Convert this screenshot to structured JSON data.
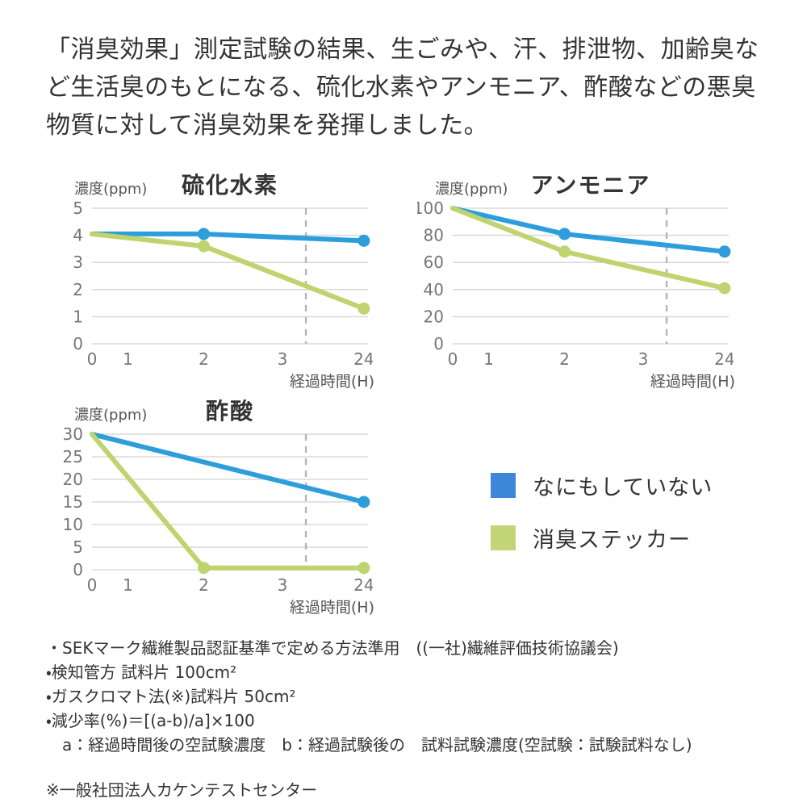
{
  "header": {
    "text": "「消臭効果」測定試験の結果、生ごみや、汗、排泄物、加齢臭など生活臭のもとになる、硫化水素やアンモニア、酢酸などの悪臭物質に対して消臭効果を発揮しました。"
  },
  "legend": {
    "items": [
      {
        "label": "なにもしていない",
        "color": "#3e86d8"
      },
      {
        "label": "消臭ステッカー",
        "color": "#c4d577"
      }
    ]
  },
  "chart_data": [
    {
      "type": "line",
      "title": "硫化水素",
      "ylabel": "濃度(ppm)",
      "xlabel": "経過時間(H)",
      "ylim": [
        0,
        5
      ],
      "yticks": [
        0,
        1,
        2,
        3,
        4,
        5
      ],
      "x_tick_labels": [
        "0",
        "1",
        "2",
        "3",
        "24"
      ],
      "x_tick_positions": [
        0,
        0.13,
        0.405,
        0.69,
        0.985
      ],
      "dashed_line_x": 0.775,
      "grid": true,
      "legend_position": "shared-right",
      "series": [
        {
          "name": "なにもしていない",
          "color": "#2d9edc",
          "points": [
            {
              "x": "0",
              "y": 4.05,
              "dot": false
            },
            {
              "x": "2",
              "y": 4.05,
              "dot": true
            },
            {
              "x": "24",
              "y": 3.8,
              "dot": true
            }
          ]
        },
        {
          "name": "消臭ステッカー",
          "color": "#bfd36e",
          "points": [
            {
              "x": "0",
              "y": 4.05,
              "dot": false
            },
            {
              "x": "2",
              "y": 3.6,
              "dot": true
            },
            {
              "x": "24",
              "y": 1.3,
              "dot": true
            }
          ]
        }
      ]
    },
    {
      "type": "line",
      "title": "アンモニア",
      "ylabel": "濃度(ppm)",
      "xlabel": "経過時間(H)",
      "ylim": [
        0,
        100
      ],
      "yticks": [
        0,
        20,
        40,
        60,
        80,
        100
      ],
      "x_tick_labels": [
        "0",
        "1",
        "2",
        "3",
        "24"
      ],
      "x_tick_positions": [
        0,
        0.13,
        0.405,
        0.69,
        0.985
      ],
      "dashed_line_x": 0.775,
      "grid": true,
      "legend_position": "shared-right",
      "series": [
        {
          "name": "なにもしていない",
          "color": "#2d9edc",
          "points": [
            {
              "x": "0",
              "y": 100,
              "dot": false
            },
            {
              "x": "2",
              "y": 81,
              "dot": true
            },
            {
              "x": "24",
              "y": 68,
              "dot": true
            }
          ]
        },
        {
          "name": "消臭ステッカー",
          "color": "#bfd36e",
          "points": [
            {
              "x": "0",
              "y": 100,
              "dot": false
            },
            {
              "x": "2",
              "y": 68,
              "dot": true
            },
            {
              "x": "24",
              "y": 41,
              "dot": true
            }
          ]
        }
      ]
    },
    {
      "type": "line",
      "title": "酢酸",
      "ylabel": "濃度(ppm)",
      "xlabel": "経過時間(H)",
      "ylim": [
        0,
        30
      ],
      "yticks": [
        0,
        5,
        10,
        15,
        20,
        25,
        30
      ],
      "x_tick_labels": [
        "0",
        "1",
        "2",
        "3",
        "24"
      ],
      "x_tick_positions": [
        0,
        0.13,
        0.405,
        0.69,
        0.985
      ],
      "dashed_line_x": 0.775,
      "grid": true,
      "legend_position": "shared-right",
      "series": [
        {
          "name": "なにもしていない",
          "color": "#2d9edc",
          "points": [
            {
              "x": "0",
              "y": 30,
              "dot": false
            },
            {
              "x": "24",
              "y": 15,
              "dot": true
            }
          ]
        },
        {
          "name": "消臭ステッカー",
          "color": "#bfd36e",
          "points": [
            {
              "x": "0",
              "y": 30,
              "dot": false
            },
            {
              "x": "2",
              "y": 0.4,
              "dot": true
            },
            {
              "x": "24",
              "y": 0.4,
              "dot": true
            }
          ]
        }
      ]
    }
  ],
  "footnotes": {
    "lines": [
      "・SEKマーク繊維製品認証基準で定める方法準用　((一社)繊維評価技術協議会)",
      "・検知管方 試料片 100cm²",
      "・ガスクロマト法(※)試料片 50cm²",
      "・減少率(%)＝[(a-b)/a]×100",
      "　a：経過時間後の空試験濃度　b：経過試験後の　試料試験濃度(空試験：試験試料なし)"
    ],
    "source": "※一般社団法人カケンテストセンター"
  }
}
